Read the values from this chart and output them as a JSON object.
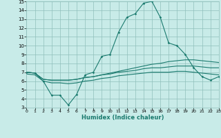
{
  "xlabel": "Humidex (Indice chaleur)",
  "ylabel": "",
  "xlim": [
    0,
    23
  ],
  "ylim": [
    3,
    15
  ],
  "xticks": [
    0,
    1,
    2,
    3,
    4,
    5,
    6,
    7,
    8,
    9,
    10,
    11,
    12,
    13,
    14,
    15,
    16,
    17,
    18,
    19,
    20,
    21,
    22,
    23
  ],
  "yticks": [
    3,
    4,
    5,
    6,
    7,
    8,
    9,
    10,
    11,
    12,
    13,
    14,
    15
  ],
  "bg_color": "#c8ebe8",
  "grid_color": "#8fbfbb",
  "line_color": "#1a7a6e",
  "line1_x": [
    0,
    1,
    2,
    3,
    4,
    5,
    6,
    7,
    8,
    9,
    10,
    11,
    12,
    13,
    14,
    15,
    16,
    17,
    18,
    19,
    20,
    21,
    22,
    23
  ],
  "line1_y": [
    7.0,
    6.9,
    6.0,
    4.4,
    4.4,
    3.3,
    4.5,
    6.7,
    7.0,
    8.8,
    9.0,
    11.5,
    13.2,
    13.6,
    14.8,
    15.0,
    13.2,
    10.3,
    10.0,
    9.0,
    7.5,
    6.5,
    6.1,
    6.5
  ],
  "line2_x": [
    0,
    1,
    2,
    3,
    4,
    5,
    6,
    7,
    8,
    9,
    10,
    11,
    12,
    13,
    14,
    15,
    16,
    17,
    18,
    19,
    20,
    21,
    22,
    23
  ],
  "line2_y": [
    7.0,
    6.9,
    6.2,
    6.1,
    6.1,
    6.1,
    6.2,
    6.4,
    6.5,
    6.7,
    6.8,
    7.0,
    7.1,
    7.2,
    7.4,
    7.5,
    7.5,
    7.6,
    7.7,
    7.7,
    7.7,
    7.6,
    7.5,
    7.5
  ],
  "line3_x": [
    0,
    1,
    2,
    3,
    4,
    5,
    6,
    7,
    8,
    9,
    10,
    11,
    12,
    13,
    14,
    15,
    16,
    17,
    18,
    19,
    20,
    21,
    22,
    23
  ],
  "line3_y": [
    7.0,
    6.9,
    6.2,
    6.1,
    6.1,
    6.1,
    6.2,
    6.4,
    6.5,
    6.7,
    6.9,
    7.1,
    7.3,
    7.5,
    7.7,
    7.9,
    8.0,
    8.2,
    8.3,
    8.4,
    8.4,
    8.3,
    8.2,
    8.1
  ],
  "line4_x": [
    0,
    1,
    2,
    3,
    4,
    5,
    6,
    7,
    8,
    9,
    10,
    11,
    12,
    13,
    14,
    15,
    16,
    17,
    18,
    19,
    20,
    21,
    22,
    23
  ],
  "line4_y": [
    6.8,
    6.7,
    6.0,
    5.8,
    5.8,
    5.7,
    5.8,
    6.0,
    6.1,
    6.3,
    6.4,
    6.6,
    6.7,
    6.8,
    6.9,
    7.0,
    7.0,
    7.0,
    7.1,
    7.1,
    7.0,
    6.9,
    6.8,
    6.7
  ]
}
